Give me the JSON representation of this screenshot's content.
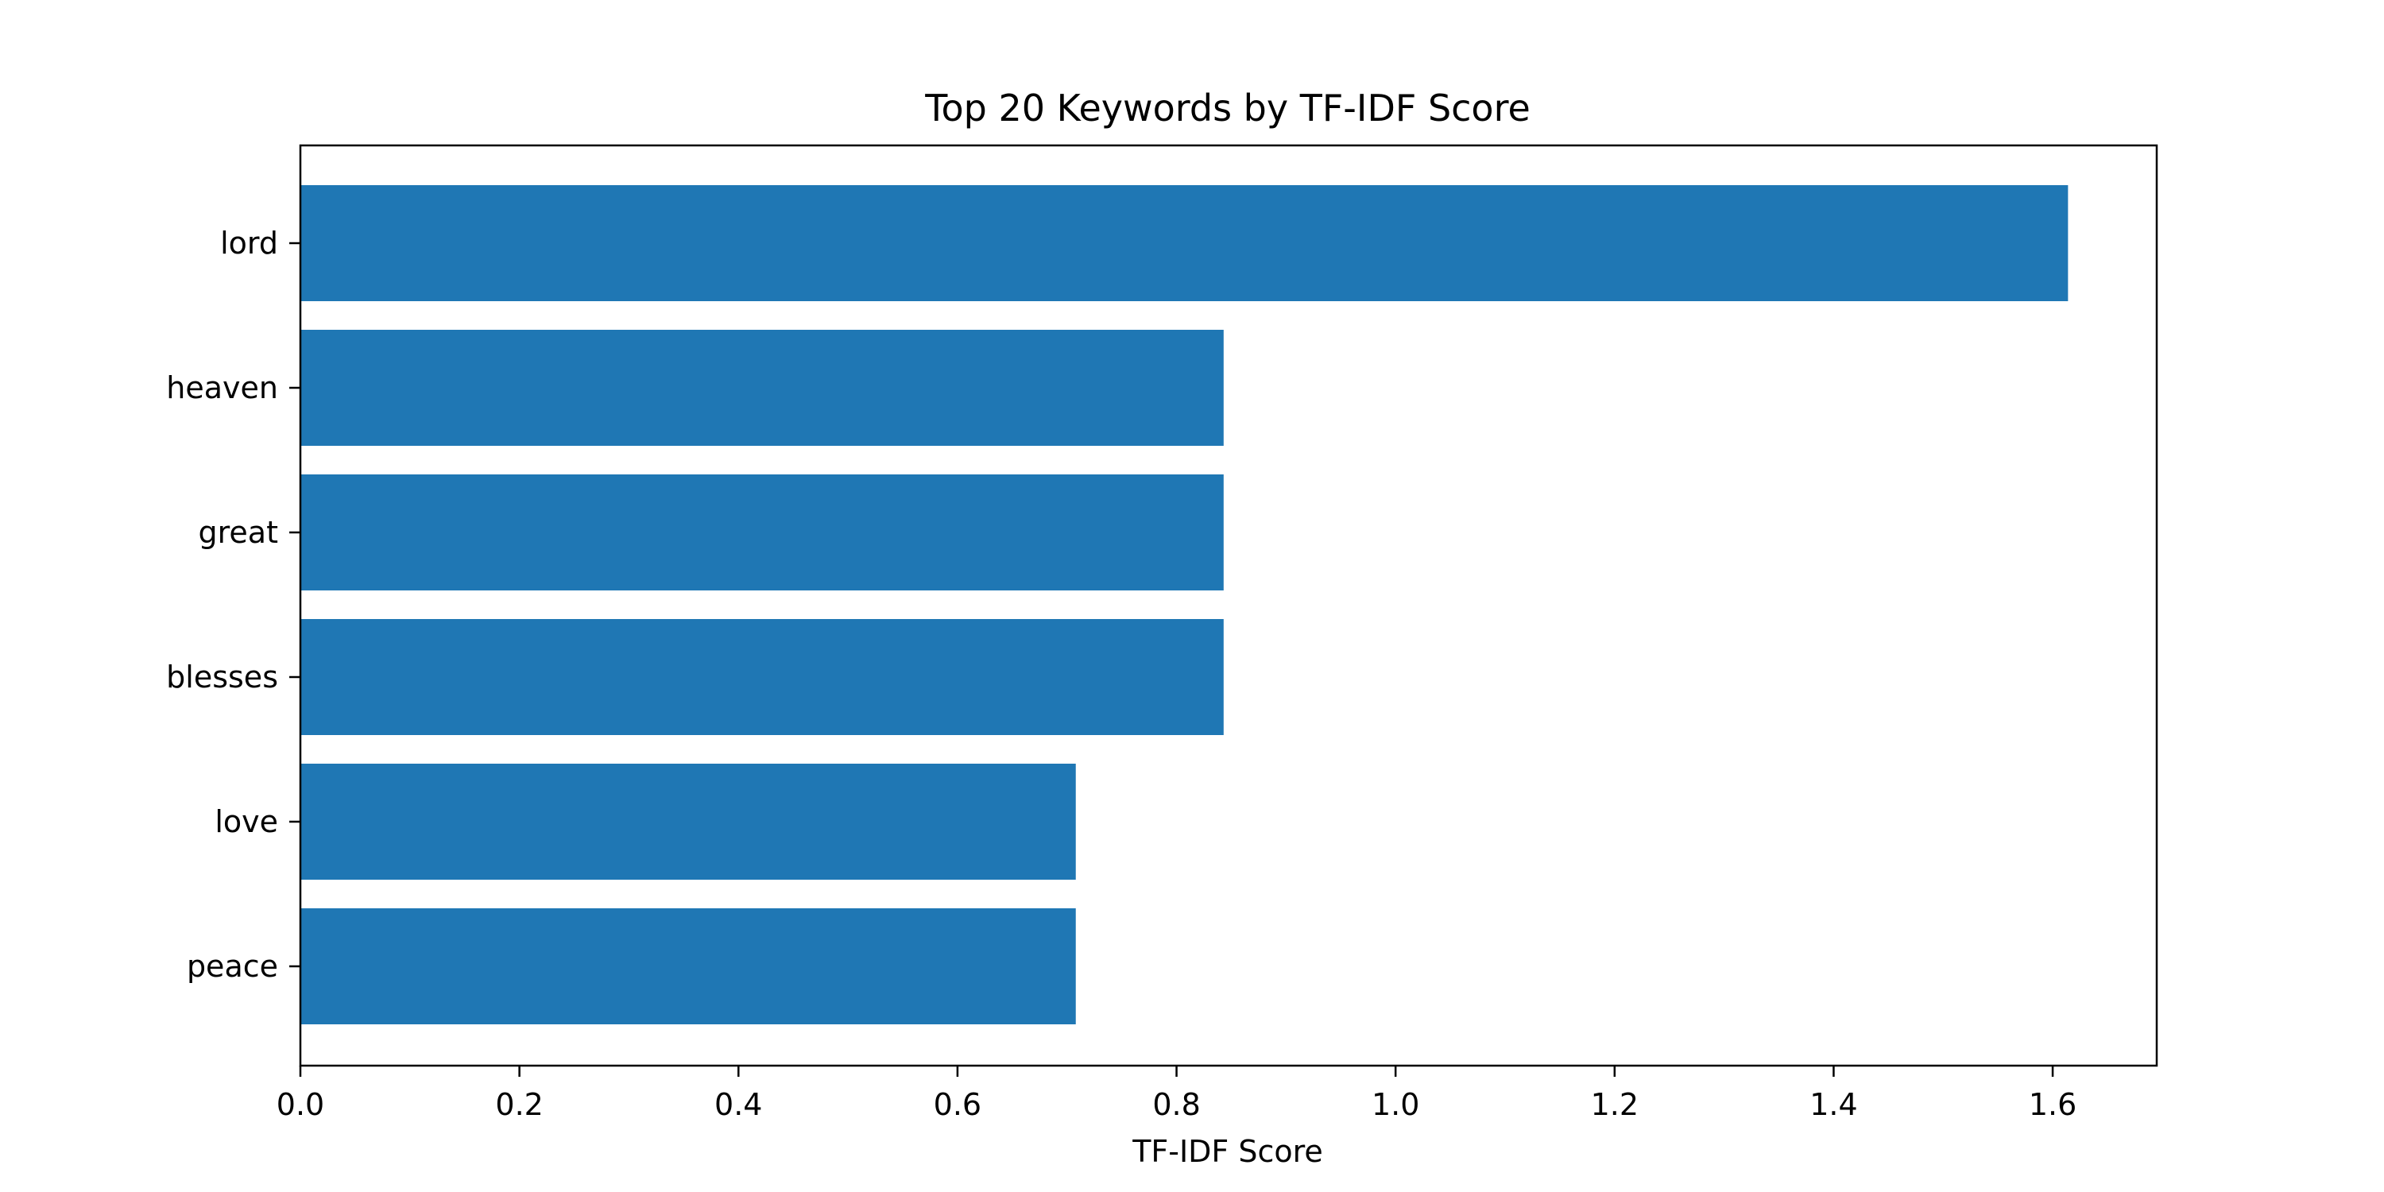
{
  "chart_data": {
    "type": "bar",
    "orientation": "horizontal",
    "title": "Top 20 Keywords by TF-IDF Score",
    "xlabel": "TF-IDF Score",
    "ylabel": "",
    "categories": [
      "lord",
      "heaven",
      "great",
      "blesses",
      "love",
      "peace"
    ],
    "values": [
      1.614,
      0.843,
      0.843,
      0.843,
      0.708,
      0.708
    ],
    "xlim": [
      0,
      1.695
    ],
    "xticks": [
      0.0,
      0.2,
      0.4,
      0.6,
      0.8,
      1.0,
      1.2,
      1.4,
      1.6
    ],
    "xtick_labels": [
      "0.0",
      "0.2",
      "0.4",
      "0.6",
      "0.8",
      "1.0",
      "1.2",
      "1.4",
      "1.6"
    ],
    "grid": false,
    "bar_color": "#1f77b4"
  }
}
